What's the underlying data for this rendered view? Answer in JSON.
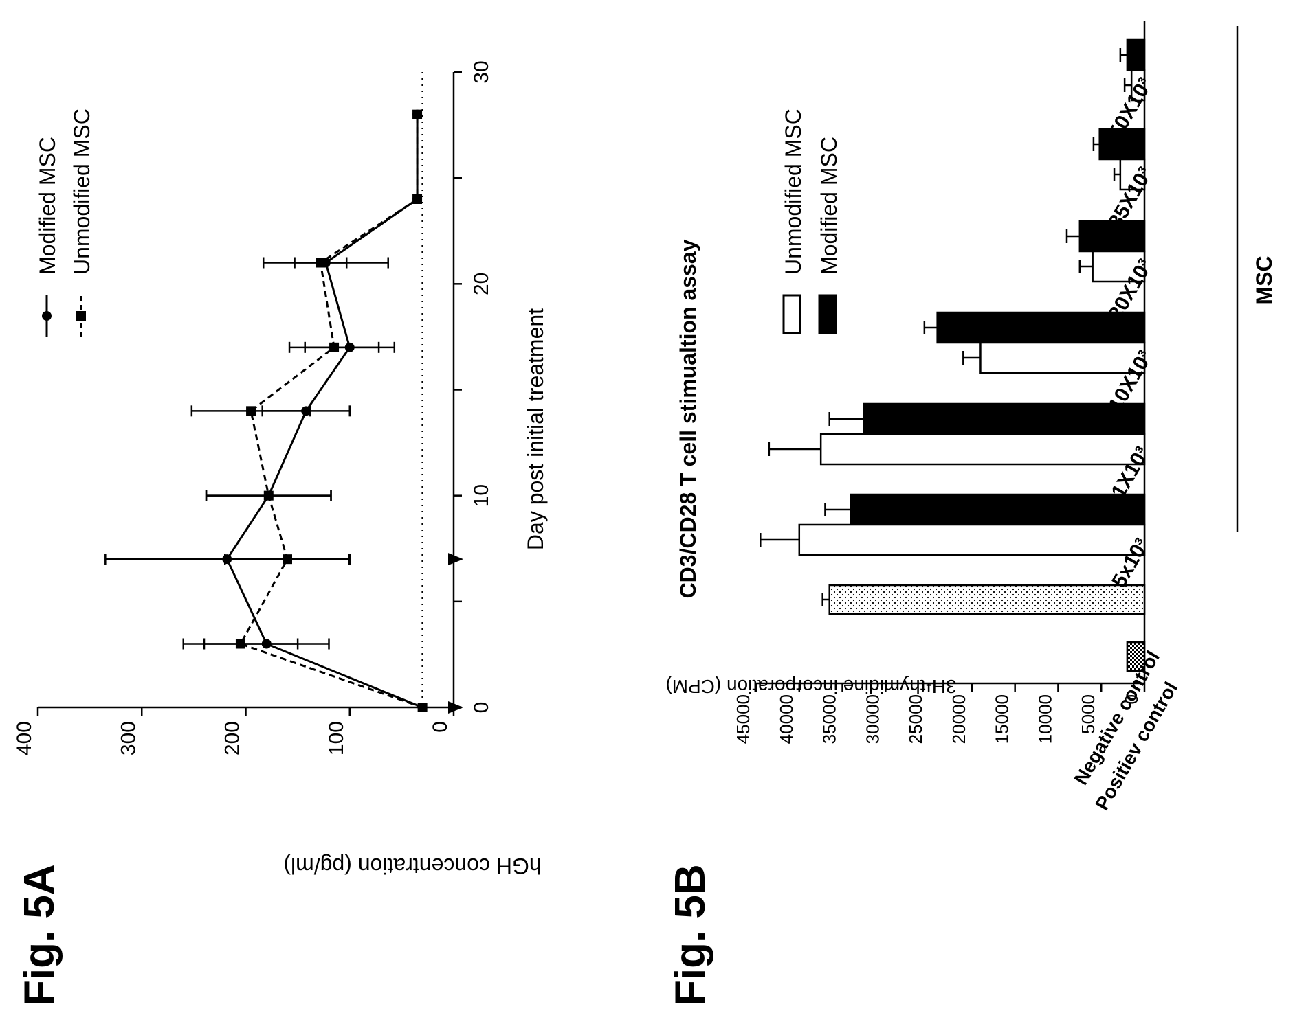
{
  "figures": [
    {
      "label": "Fig. 5A"
    },
    {
      "label": "Fig. 5B"
    }
  ],
  "chart_data": [
    {
      "type": "line",
      "title": "",
      "xlabel": "Day post initial treatment",
      "ylabel": "hGH concentration (pg/ml)",
      "xlim": [
        0,
        30
      ],
      "ylim": [
        0,
        400
      ],
      "xticks": [
        "0",
        "10",
        "20",
        "30"
      ],
      "yticks": [
        "0",
        "100",
        "200",
        "300",
        "400"
      ],
      "legend_position": "top-right",
      "baseline_value": 30,
      "treatment_days": [
        0,
        7
      ],
      "series": [
        {
          "name": "Modified MSC",
          "style": "solid",
          "marker": "circle",
          "x": [
            0,
            3,
            7,
            10,
            14,
            17,
            21,
            24,
            28
          ],
          "y": [
            30,
            180,
            218,
            178,
            142,
            100,
            123,
            35,
            35
          ],
          "err": [
            0,
            60,
            117,
            60,
            42,
            43,
            60,
            0,
            0
          ]
        },
        {
          "name": "Unmodified MSC",
          "style": "dashed",
          "marker": "square",
          "x": [
            0,
            3,
            7,
            10,
            14,
            17,
            21,
            24,
            28
          ],
          "y": [
            30,
            205,
            160,
            178,
            195,
            115,
            128,
            35,
            35
          ],
          "err": [
            0,
            55,
            60,
            60,
            57,
            43,
            25,
            0,
            0
          ]
        }
      ]
    },
    {
      "type": "bar",
      "title": "CD3/CD28 T cell stimualtion assay",
      "ylabel": "3H-thymidine incorporation (CPM)",
      "xlabel": "",
      "group_label": "MSC",
      "ylim": [
        0,
        45000
      ],
      "yticks": [
        "0",
        "5000",
        "10000",
        "15000",
        "20000",
        "25000",
        "30000",
        "35000",
        "40000",
        "45000"
      ],
      "legend_position": "top",
      "controls": [
        {
          "name": "Negative control",
          "value": 2000,
          "err": 0,
          "pattern": "checker"
        },
        {
          "name": "Positiev control",
          "value": 36500,
          "err": 800,
          "pattern": "dots"
        }
      ],
      "categories": [
        "5x10³",
        "1X10³",
        "10X10³",
        "20X10³",
        "35X10³",
        "50X10³"
      ],
      "series": [
        {
          "name": "Unmodified MSC",
          "color": "#ffffff",
          "values": [
            40000,
            37500,
            19000,
            6000,
            2800,
            1500
          ],
          "err": [
            4500,
            6000,
            2000,
            1500,
            700,
            800
          ]
        },
        {
          "name": "Modified MSC",
          "color": "#000000",
          "values": [
            34000,
            32500,
            24000,
            7500,
            5200,
            2000
          ],
          "err": [
            3000,
            4000,
            1500,
            1500,
            700,
            800
          ]
        }
      ]
    }
  ]
}
